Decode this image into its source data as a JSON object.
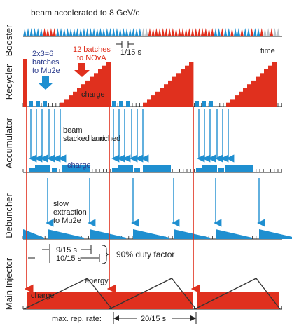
{
  "rows": {
    "booster": "Booster",
    "recycler": "Recycler",
    "accumulator": "Accumulator",
    "debuncher": "Debuncher",
    "main_injector": "Main Injector"
  },
  "labels": {
    "beam_accelerated": "beam accelerated to 8 GeV/c",
    "batch_period": "1/15 s",
    "time": "time",
    "mu2e_batches_1": "2x3=6",
    "mu2e_batches_2": "batches",
    "mu2e_batches_3": "to Mu2e",
    "nova_batches_1": "12 batches",
    "nova_batches_2": "to NOvA",
    "recycler_charge": "charge",
    "stacked_1": "beam",
    "stacked_2": "stacked and",
    "stacked_3": "bunched",
    "accumulator_charge": "charge",
    "slow_1": "slow",
    "slow_2": "extraction",
    "slow_3": "to Mu2e",
    "spill_time": "9/15 s",
    "cycle_time": "10/15 s",
    "duty_factor": "90% duty factor",
    "mi_charge": "charge",
    "energy": "energy",
    "max_rep_rate": "max. rep. rate:",
    "rep_period": "20/15 s"
  },
  "colors": {
    "blue": "#1f8fd0",
    "red": "#e0301e",
    "grey": "#b9c2c8",
    "navy": "#2a3a8c"
  }
}
